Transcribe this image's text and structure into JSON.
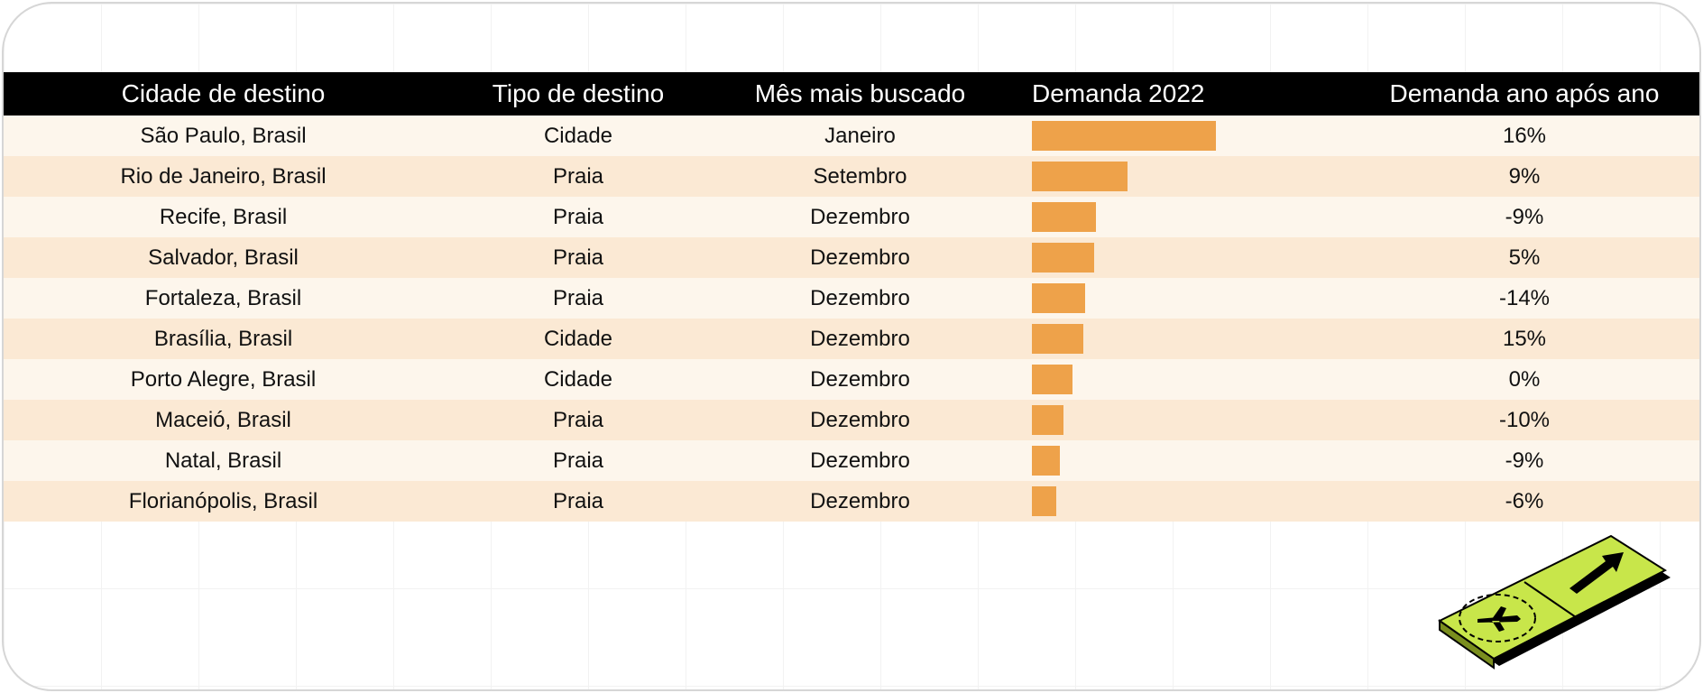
{
  "colors": {
    "header_bg": "#000000",
    "bar": "#eea24a",
    "row_light": "#fdf6ec",
    "row_dark": "#fbe9d4",
    "sign": "#c8e64a"
  },
  "headers": {
    "city": "Cidade de destino",
    "type": "Tipo de destino",
    "month": "Mês mais buscado",
    "demand": "Demanda 2022",
    "yoy": "Demanda ano após ano"
  },
  "rows": [
    {
      "city": "São Paulo, Brasil",
      "type": "Cidade",
      "month": "Janeiro",
      "demand": 100,
      "yoy": "16%"
    },
    {
      "city": "Rio de Janeiro, Brasil",
      "type": "Praia",
      "month": "Setembro",
      "demand": 52,
      "yoy": "9%"
    },
    {
      "city": "Recife, Brasil",
      "type": "Praia",
      "month": "Dezembro",
      "demand": 35,
      "yoy": "-9%"
    },
    {
      "city": "Salvador, Brasil",
      "type": "Praia",
      "month": "Dezembro",
      "demand": 34,
      "yoy": "5%"
    },
    {
      "city": "Fortaleza, Brasil",
      "type": "Praia",
      "month": "Dezembro",
      "demand": 29,
      "yoy": "-14%"
    },
    {
      "city": "Brasília, Brasil",
      "type": "Cidade",
      "month": "Dezembro",
      "demand": 28,
      "yoy": "15%"
    },
    {
      "city": "Porto Alegre, Brasil",
      "type": "Cidade",
      "month": "Dezembro",
      "demand": 22,
      "yoy": "0%"
    },
    {
      "city": "Maceió, Brasil",
      "type": "Praia",
      "month": "Dezembro",
      "demand": 17,
      "yoy": "-10%"
    },
    {
      "city": "Natal, Brasil",
      "type": "Praia",
      "month": "Dezembro",
      "demand": 15,
      "yoy": "-9%"
    },
    {
      "city": "Florianópolis, Brasil",
      "type": "Praia",
      "month": "Dezembro",
      "demand": 13,
      "yoy": "-6%"
    }
  ],
  "chart_data": {
    "type": "bar",
    "categories": [
      "São Paulo, Brasil",
      "Rio de Janeiro, Brasil",
      "Recife, Brasil",
      "Salvador, Brasil",
      "Fortaleza, Brasil",
      "Brasília, Brasil",
      "Porto Alegre, Brasil",
      "Maceió, Brasil",
      "Natal, Brasil",
      "Florianópolis, Brasil"
    ],
    "series": [
      {
        "name": "Demanda 2022",
        "values": [
          100,
          52,
          35,
          34,
          29,
          28,
          22,
          17,
          15,
          13
        ]
      }
    ],
    "orientation": "horizontal",
    "relative_scale": true,
    "xlim": [
      0,
      100
    ]
  },
  "icons": {
    "sign": "airport-direction-sign-icon"
  }
}
